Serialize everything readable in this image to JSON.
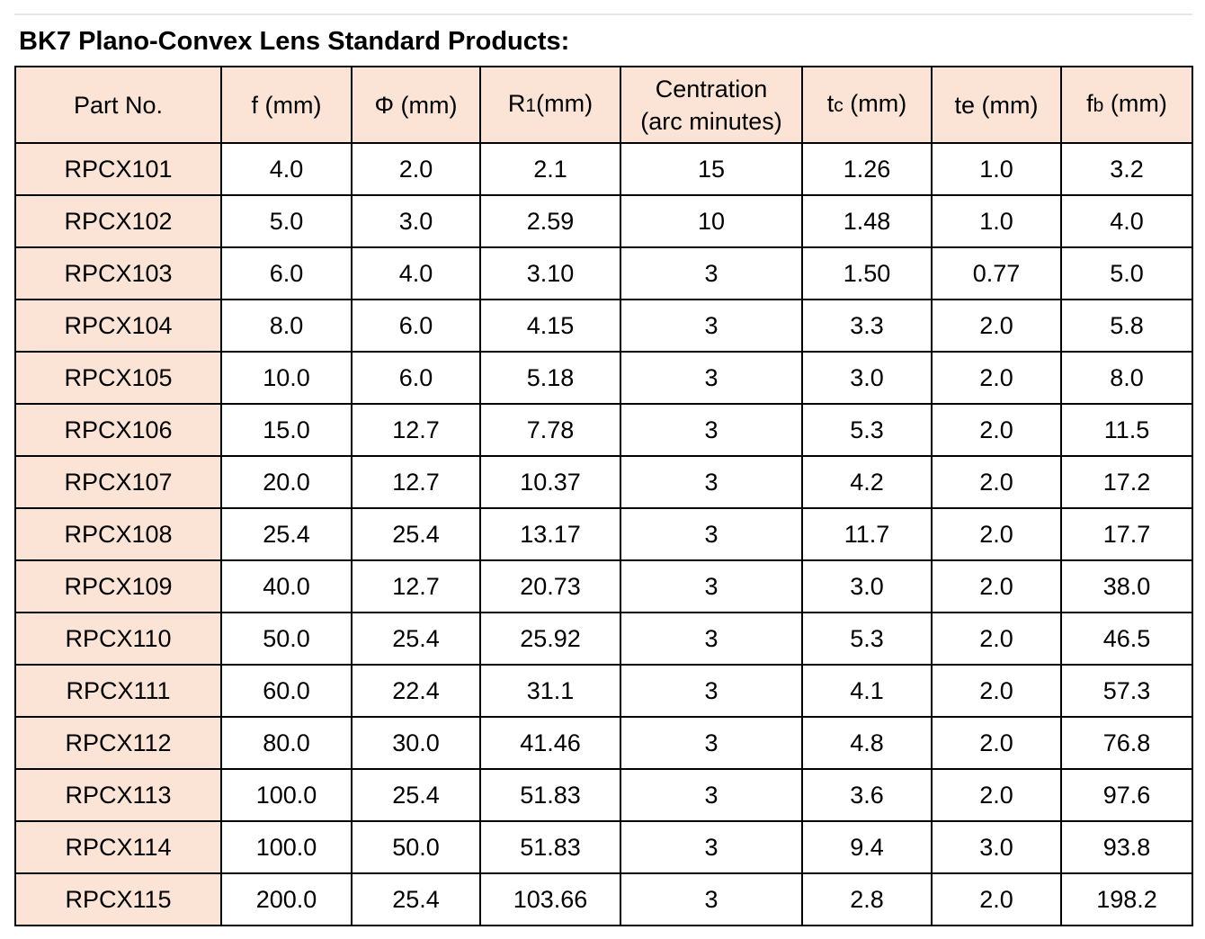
{
  "title": "BK7 Plano-Convex Lens Standard Products:",
  "columns": [
    {
      "key": "part",
      "label": "Part No.",
      "sub": "",
      "tail": ""
    },
    {
      "key": "f",
      "label": "f",
      "sub": "",
      "tail": " (mm)"
    },
    {
      "key": "phi",
      "label": "Φ",
      "sub": "",
      "tail": " (mm)"
    },
    {
      "key": "r1",
      "label": "R",
      "sub": "1",
      "tail": "(mm)"
    },
    {
      "key": "centration",
      "label": "Centration",
      "sub": "",
      "tail": "(arc minutes)"
    },
    {
      "key": "tc",
      "label": "t",
      "sub": "c",
      "tail": " (mm)"
    },
    {
      "key": "te",
      "label": "te",
      "sub": "",
      "tail": " (mm)"
    },
    {
      "key": "fb",
      "label": "f",
      "sub": "b",
      "tail": " (mm)"
    }
  ],
  "rows": [
    [
      "RPCX101",
      "4.0",
      "2.0",
      "2.1",
      "15",
      "1.26",
      "1.0",
      "3.2"
    ],
    [
      "RPCX102",
      "5.0",
      "3.0",
      "2.59",
      "10",
      "1.48",
      "1.0",
      "4.0"
    ],
    [
      "RPCX103",
      "6.0",
      "4.0",
      "3.10",
      "3",
      "1.50",
      "0.77",
      "5.0"
    ],
    [
      "RPCX104",
      "8.0",
      "6.0",
      "4.15",
      "3",
      "3.3",
      "2.0",
      "5.8"
    ],
    [
      "RPCX105",
      "10.0",
      "6.0",
      "5.18",
      "3",
      "3.0",
      "2.0",
      "8.0"
    ],
    [
      "RPCX106",
      "15.0",
      "12.7",
      "7.78",
      "3",
      "5.3",
      "2.0",
      "11.5"
    ],
    [
      "RPCX107",
      "20.0",
      "12.7",
      "10.37",
      "3",
      "4.2",
      "2.0",
      "17.2"
    ],
    [
      "RPCX108",
      "25.4",
      "25.4",
      "13.17",
      "3",
      "11.7",
      "2.0",
      "17.7"
    ],
    [
      "RPCX109",
      "40.0",
      "12.7",
      "20.73",
      "3",
      "3.0",
      "2.0",
      "38.0"
    ],
    [
      "RPCX110",
      "50.0",
      "25.4",
      "25.92",
      "3",
      "5.3",
      "2.0",
      "46.5"
    ],
    [
      "RPCX111",
      "60.0",
      "22.4",
      "31.1",
      "3",
      "4.1",
      "2.0",
      "57.3"
    ],
    [
      "RPCX112",
      "80.0",
      "30.0",
      "41.46",
      "3",
      "4.8",
      "2.0",
      "76.8"
    ],
    [
      "RPCX113",
      "100.0",
      "25.4",
      "51.83",
      "3",
      "3.6",
      "2.0",
      "97.6"
    ],
    [
      "RPCX114",
      "100.0",
      "50.0",
      "51.83",
      "3",
      "9.4",
      "3.0",
      "93.8"
    ],
    [
      "RPCX115",
      "200.0",
      "25.4",
      "103.66",
      "3",
      "2.8",
      "2.0",
      "198.2"
    ]
  ],
  "colors": {
    "header_bg": "#fbe4d5",
    "part_bg": "#fbe4d5",
    "border": "#000000",
    "rule": "#e6e6e6"
  }
}
